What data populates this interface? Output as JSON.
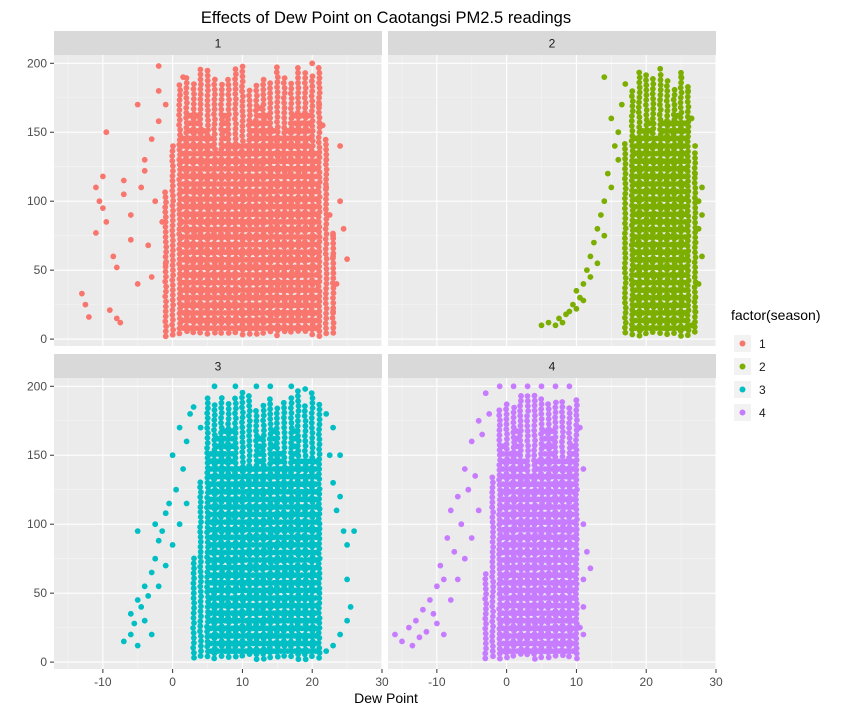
{
  "chart_data": {
    "type": "scatter",
    "title": "Effects of Dew Point on Caotangsi PM2.5 readings",
    "xlabel": "Dew Point",
    "ylabel": "",
    "xlim": [
      -17,
      30
    ],
    "ylim": [
      -5,
      206
    ],
    "x_ticks": [
      -10,
      0,
      10,
      20,
      30
    ],
    "y_ticks": [
      0,
      50,
      100,
      150,
      200
    ],
    "grid": true,
    "background": "#ebebeb",
    "strip_color": "#d9d9d9",
    "legend": {
      "title": "factor(season)",
      "placement": "right",
      "entries": [
        "1",
        "2",
        "3",
        "4"
      ]
    },
    "series": [
      {
        "name": "1",
        "color": "#F8766D",
        "dense_band": [
          -1,
          23
        ],
        "bulk_x": [
          1,
          21
        ],
        "bulk_y": [
          2,
          198
        ],
        "points": [
          [
            -13,
            33
          ],
          [
            -12.5,
            25
          ],
          [
            -12,
            16
          ],
          [
            -11,
            77
          ],
          [
            -11,
            110
          ],
          [
            -10.5,
            100
          ],
          [
            -10,
            118
          ],
          [
            -9.5,
            150
          ],
          [
            -10,
            95
          ],
          [
            -9.5,
            85
          ],
          [
            -9,
            21
          ],
          [
            -8,
            15
          ],
          [
            -7.5,
            12
          ],
          [
            -8.5,
            60
          ],
          [
            -8,
            52
          ],
          [
            -7,
            115
          ],
          [
            -7,
            105
          ],
          [
            -6,
            90
          ],
          [
            -6,
            72
          ],
          [
            -5,
            170
          ],
          [
            -5,
            40
          ],
          [
            -4.5,
            110
          ],
          [
            -4,
            130
          ],
          [
            -4,
            122
          ],
          [
            -3.5,
            68
          ],
          [
            -3,
            45
          ],
          [
            -3,
            145
          ],
          [
            -2.5,
            100
          ],
          [
            -2,
            180
          ],
          [
            -2,
            158
          ],
          [
            -1.5,
            85
          ],
          [
            -1,
            170
          ],
          [
            -1,
            55
          ],
          [
            -2,
            198
          ],
          [
            1.5,
            190
          ],
          [
            20,
            200
          ],
          [
            21,
            170
          ],
          [
            21.5,
            155
          ],
          [
            22,
            130
          ],
          [
            22,
            110
          ],
          [
            22.5,
            90
          ],
          [
            23,
            75
          ],
          [
            23,
            60
          ],
          [
            24,
            140
          ],
          [
            24,
            100
          ],
          [
            24.5,
            80
          ],
          [
            25,
            58
          ],
          [
            23.5,
            40
          ],
          [
            23,
            20
          ]
        ]
      },
      {
        "name": "2",
        "color": "#7CAE00",
        "dense_band": [
          17,
          27
        ],
        "bulk_x": [
          18,
          26
        ],
        "bulk_y": [
          2,
          196
        ],
        "points": [
          [
            5,
            10
          ],
          [
            6,
            12
          ],
          [
            7,
            10
          ],
          [
            7.5,
            15
          ],
          [
            8,
            12
          ],
          [
            8.5,
            18
          ],
          [
            9,
            20
          ],
          [
            9.5,
            25
          ],
          [
            10,
            22
          ],
          [
            10,
            35
          ],
          [
            10.5,
            30
          ],
          [
            11,
            40
          ],
          [
            11,
            28
          ],
          [
            11.5,
            50
          ],
          [
            12,
            60
          ],
          [
            12,
            45
          ],
          [
            12.5,
            70
          ],
          [
            13,
            80
          ],
          [
            13,
            55
          ],
          [
            13.5,
            90
          ],
          [
            14,
            100
          ],
          [
            14,
            75
          ],
          [
            14,
            190
          ],
          [
            14.5,
            120
          ],
          [
            15,
            110
          ],
          [
            15,
            160
          ],
          [
            15.5,
            140
          ],
          [
            16,
            150
          ],
          [
            16,
            130
          ],
          [
            16.5,
            170
          ],
          [
            17,
            185
          ],
          [
            22,
            196
          ],
          [
            25,
            190
          ],
          [
            26,
            180
          ],
          [
            26.5,
            160
          ],
          [
            27,
            140
          ],
          [
            27,
            120
          ],
          [
            27.5,
            100
          ],
          [
            27.5,
            80
          ],
          [
            28,
            110
          ],
          [
            28,
            90
          ],
          [
            28,
            60
          ],
          [
            27.5,
            40
          ],
          [
            27,
            30
          ],
          [
            27,
            20
          ],
          [
            26.5,
            10
          ],
          [
            27,
            70
          ]
        ]
      },
      {
        "name": "3",
        "color": "#00BFC4",
        "dense_band": [
          3,
          21
        ],
        "bulk_x": [
          5,
          21
        ],
        "bulk_y": [
          2,
          198
        ],
        "points": [
          [
            -7,
            15
          ],
          [
            -6,
            20
          ],
          [
            -6,
            35
          ],
          [
            -5.5,
            28
          ],
          [
            -5,
            45
          ],
          [
            -5,
            95
          ],
          [
            -5,
            12
          ],
          [
            -4.5,
            40
          ],
          [
            -4,
            30
          ],
          [
            -4,
            55
          ],
          [
            -3.5,
            48
          ],
          [
            -3,
            65
          ],
          [
            -3,
            20
          ],
          [
            -2.5,
            100
          ],
          [
            -2.5,
            75
          ],
          [
            -2,
            55
          ],
          [
            -2,
            88
          ],
          [
            -1.5,
            95
          ],
          [
            -1,
            108
          ],
          [
            -1,
            70
          ],
          [
            -0.5,
            115
          ],
          [
            0,
            150
          ],
          [
            0,
            85
          ],
          [
            0.5,
            125
          ],
          [
            1,
            170
          ],
          [
            1,
            100
          ],
          [
            1.5,
            140
          ],
          [
            2,
            160
          ],
          [
            2,
            115
          ],
          [
            2.5,
            180
          ],
          [
            3,
            185
          ],
          [
            4,
            170
          ],
          [
            6,
            200
          ],
          [
            9,
            200
          ],
          [
            12,
            200
          ],
          [
            14,
            200
          ],
          [
            17,
            200
          ],
          [
            19,
            198
          ],
          [
            22,
            180
          ],
          [
            22.5,
            150
          ],
          [
            23,
            170
          ],
          [
            23,
            130
          ],
          [
            23.5,
            110
          ],
          [
            24,
            150
          ],
          [
            24,
            120
          ],
          [
            24.5,
            95
          ],
          [
            25,
            85
          ],
          [
            25,
            60
          ],
          [
            25.5,
            40
          ],
          [
            26,
            95
          ],
          [
            25,
            30
          ],
          [
            24,
            20
          ],
          [
            23,
            12
          ],
          [
            22,
            8
          ]
        ]
      },
      {
        "name": "4",
        "color": "#C77CFF",
        "dense_band": [
          -3,
          10
        ],
        "bulk_x": [
          -1,
          10
        ],
        "bulk_y": [
          2,
          198
        ],
        "points": [
          [
            -16,
            20
          ],
          [
            -15,
            15
          ],
          [
            -14,
            25
          ],
          [
            -13.5,
            12
          ],
          [
            -13,
            30
          ],
          [
            -12.5,
            18
          ],
          [
            -12,
            38
          ],
          [
            -11.5,
            22
          ],
          [
            -11,
            45
          ],
          [
            -10.5,
            35
          ],
          [
            -10,
            55
          ],
          [
            -10,
            28
          ],
          [
            -9.5,
            70
          ],
          [
            -9,
            60
          ],
          [
            -9,
            20
          ],
          [
            -8.5,
            90
          ],
          [
            -8,
            110
          ],
          [
            -8,
            45
          ],
          [
            -7.5,
            80
          ],
          [
            -7,
            120
          ],
          [
            -7,
            60
          ],
          [
            -6.5,
            100
          ],
          [
            -6,
            140
          ],
          [
            -6,
            75
          ],
          [
            -5.5,
            125
          ],
          [
            -5,
            160
          ],
          [
            -5,
            90
          ],
          [
            -4.5,
            135
          ],
          [
            -4,
            175
          ],
          [
            -4,
            110
          ],
          [
            -3.5,
            165
          ],
          [
            -3,
            195
          ],
          [
            -2.5,
            180
          ],
          [
            -1,
            200
          ],
          [
            1,
            200
          ],
          [
            3,
            200
          ],
          [
            5,
            200
          ],
          [
            7,
            200
          ],
          [
            9,
            200
          ],
          [
            10,
            190
          ],
          [
            10.5,
            170
          ],
          [
            11,
            140
          ],
          [
            11,
            100
          ],
          [
            11.5,
            80
          ],
          [
            11,
            60
          ],
          [
            12,
            68
          ],
          [
            11,
            40
          ],
          [
            10.5,
            25
          ],
          [
            10,
            10
          ],
          [
            11,
            20
          ]
        ]
      }
    ]
  }
}
